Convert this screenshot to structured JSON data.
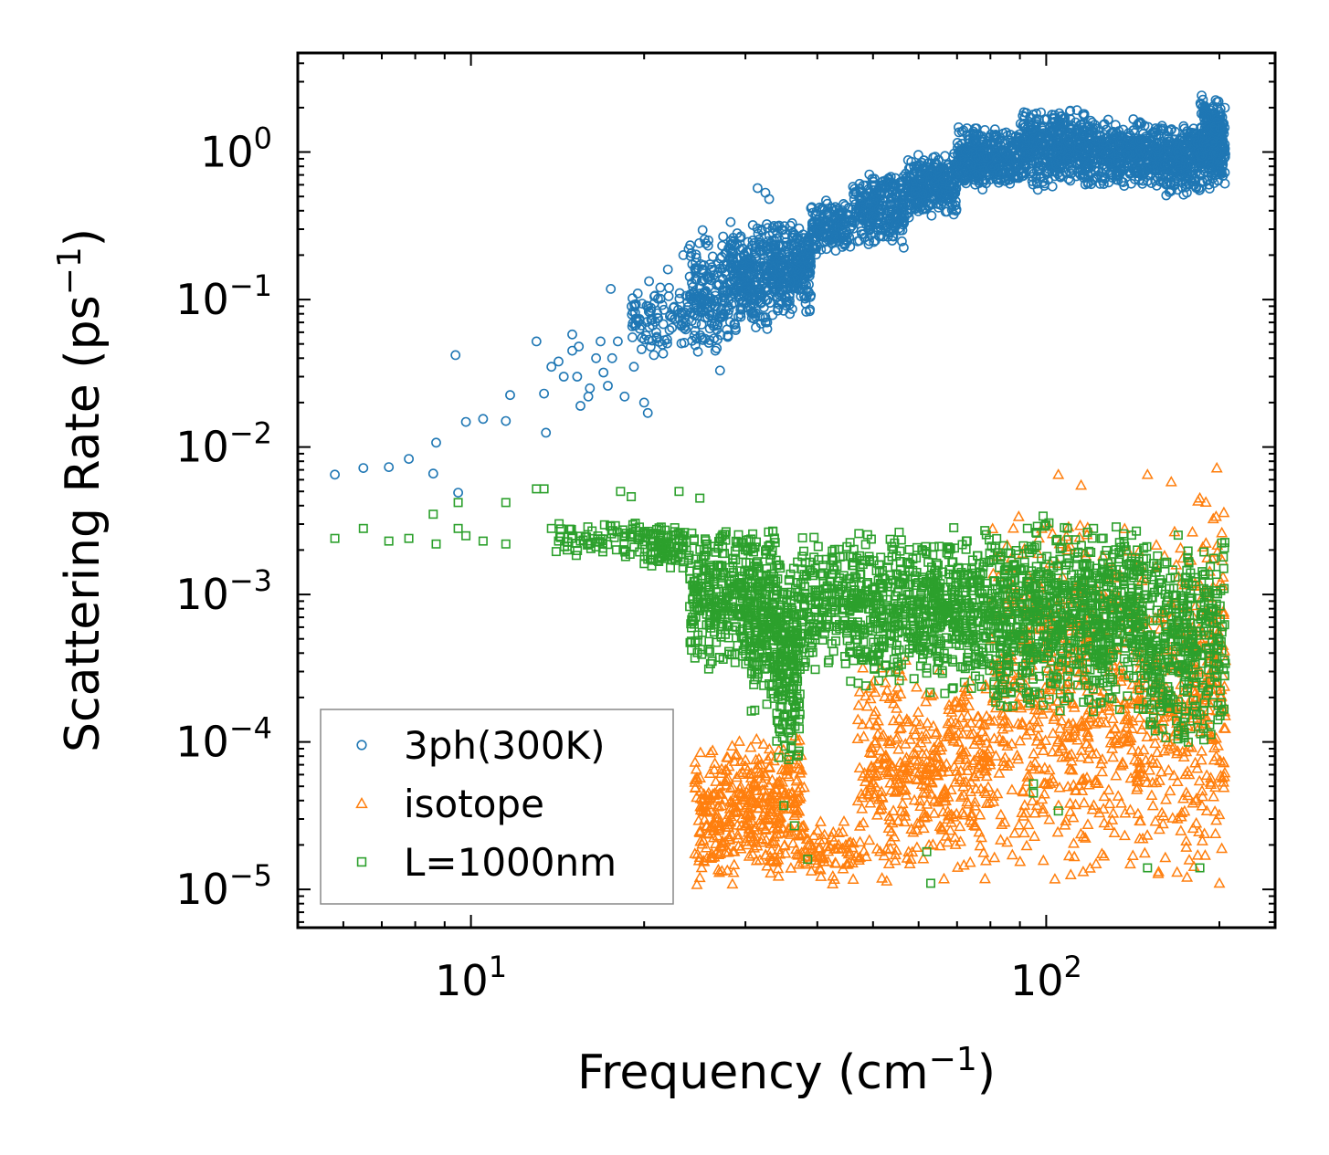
{
  "chart_data": {
    "type": "scatter",
    "title": "",
    "xlabel": "Frequency (cm⁻¹)",
    "ylabel": "Scattering Rate (ps⁻¹)",
    "xlabel_parts": {
      "base": "Frequency (cm",
      "sup": "−1",
      "close": ")"
    },
    "ylabel_parts": {
      "base": "Scattering Rate (ps",
      "sup": "−1",
      "close": ")"
    },
    "xscale": "log",
    "yscale": "log",
    "xlim": [
      5.0,
      250.0
    ],
    "ylim": [
      5.5e-06,
      4.7
    ],
    "xticks": [
      {
        "value": 10,
        "base": "10",
        "exp": "1"
      },
      {
        "value": 100,
        "base": "10",
        "exp": "2"
      }
    ],
    "yticks": [
      {
        "value": 1e-05,
        "base": "10",
        "exp": "−5"
      },
      {
        "value": 0.0001,
        "base": "10",
        "exp": "−4"
      },
      {
        "value": 0.001,
        "base": "10",
        "exp": "−3"
      },
      {
        "value": 0.01,
        "base": "10",
        "exp": "−2"
      },
      {
        "value": 0.1,
        "base": "10",
        "exp": "−1"
      },
      {
        "value": 1,
        "base": "10",
        "exp": "0"
      }
    ],
    "legend_position": "lower-left",
    "series": [
      {
        "name": "3ph(300K)",
        "marker": "circle",
        "color": "#1f77b4",
        "points": [
          [
            5.8,
            0.0065
          ],
          [
            6.5,
            0.0072
          ],
          [
            7.2,
            0.0073
          ],
          [
            7.8,
            0.0083
          ],
          [
            8.7,
            0.0107
          ],
          [
            8.6,
            0.0066
          ],
          [
            9.4,
            0.042
          ],
          [
            9.5,
            0.0049
          ],
          [
            9.8,
            0.0148
          ],
          [
            10.5,
            0.0155
          ],
          [
            11.5,
            0.015
          ],
          [
            11.7,
            0.0225
          ],
          [
            13.0,
            0.052
          ],
          [
            13.4,
            0.023
          ],
          [
            13.5,
            0.0125
          ],
          [
            13.8,
            0.035
          ],
          [
            14.2,
            0.038
          ],
          [
            14.5,
            0.03
          ],
          [
            15.0,
            0.058
          ],
          [
            15.0,
            0.045
          ],
          [
            15.3,
            0.03
          ],
          [
            15.4,
            0.048
          ],
          [
            15.5,
            0.019
          ],
          [
            16.0,
            0.022
          ],
          [
            16.1,
            0.025
          ],
          [
            16.5,
            0.04
          ],
          [
            16.8,
            0.052
          ],
          [
            17.0,
            0.032
          ],
          [
            17.3,
            0.026
          ],
          [
            17.6,
            0.04
          ],
          [
            17.5,
            0.118
          ],
          [
            18.0,
            0.052
          ],
          [
            18.5,
            0.022
          ],
          [
            19.5,
            0.11
          ],
          [
            19.2,
            0.035
          ],
          [
            19.8,
            0.046
          ],
          [
            20.0,
            0.02
          ],
          [
            20.3,
            0.017
          ],
          [
            20.8,
            0.042
          ],
          [
            21.0,
            0.06
          ],
          [
            22.0,
            0.16
          ],
          [
            22.1,
            0.12
          ],
          [
            22.5,
            0.088
          ],
          [
            23.0,
            0.075
          ],
          [
            23.4,
            0.2
          ],
          [
            23.9,
            0.22
          ],
          [
            24.5,
            0.078
          ],
          [
            25.0,
            0.11
          ],
          [
            25.6,
            0.24
          ],
          [
            26.0,
            0.053
          ],
          [
            26.6,
            0.045
          ],
          [
            27.1,
            0.033
          ],
          [
            28.0,
            0.09
          ],
          [
            29.0,
            0.16
          ],
          [
            30.0,
            0.12
          ],
          [
            30.8,
            0.075
          ],
          [
            31.5,
            0.57
          ],
          [
            32.5,
            0.53
          ],
          [
            33.0,
            0.48
          ]
        ],
        "bands": [
          {
            "x0": 19,
            "x1": 24,
            "lo": 0.04,
            "hi": 0.14,
            "n": 90
          },
          {
            "x0": 24,
            "x1": 28,
            "lo": 0.04,
            "hi": 0.3,
            "n": 170
          },
          {
            "x0": 28,
            "x1": 33,
            "lo": 0.06,
            "hi": 0.35,
            "n": 260
          },
          {
            "x0": 33,
            "x1": 39,
            "lo": 0.075,
            "hi": 0.35,
            "n": 300
          },
          {
            "x0": 39,
            "x1": 46,
            "lo": 0.2,
            "hi": 0.48,
            "n": 160
          },
          {
            "x0": 46,
            "x1": 57,
            "lo": 0.22,
            "hi": 0.75,
            "n": 260
          },
          {
            "x0": 57,
            "x1": 70,
            "lo": 0.35,
            "hi": 1.0,
            "n": 300
          },
          {
            "x0": 70,
            "x1": 90,
            "lo": 0.55,
            "hi": 1.5,
            "n": 380
          },
          {
            "x0": 90,
            "x1": 120,
            "lo": 0.55,
            "hi": 2.0,
            "n": 460
          },
          {
            "x0": 120,
            "x1": 160,
            "lo": 0.55,
            "hi": 1.7,
            "n": 440
          },
          {
            "x0": 160,
            "x1": 185,
            "lo": 0.5,
            "hi": 1.6,
            "n": 240
          },
          {
            "x0": 185,
            "x1": 205,
            "lo": 0.55,
            "hi": 2.5,
            "n": 300
          }
        ]
      },
      {
        "name": "isotope",
        "marker": "triangle",
        "color": "#ff7f0e",
        "points": [
          [
            105,
            0.0065
          ],
          [
            150,
            0.0065
          ],
          [
            165,
            0.0058
          ],
          [
            198,
            0.0072
          ],
          [
            115,
            0.0055
          ],
          [
            185,
            0.0045
          ],
          [
            25,
            1.2e-05
          ],
          [
            40,
            1.5e-05
          ],
          [
            200,
            1.1e-05
          ]
        ],
        "bands": [
          {
            "x0": 24.5,
            "x1": 31,
            "lo": 1e-05,
            "hi": 0.00011,
            "n": 220
          },
          {
            "x0": 31,
            "x1": 38,
            "lo": 1e-05,
            "hi": 0.00012,
            "n": 200
          },
          {
            "x0": 38,
            "x1": 41,
            "lo": 1.2e-05,
            "hi": 3e-05,
            "n": 30
          },
          {
            "x0": 41,
            "x1": 47,
            "lo": 1e-05,
            "hi": 3e-05,
            "n": 40
          },
          {
            "x0": 47,
            "x1": 60,
            "lo": 1e-05,
            "hi": 0.0004,
            "n": 200
          },
          {
            "x0": 60,
            "x1": 80,
            "lo": 1e-05,
            "hi": 0.0004,
            "n": 240
          },
          {
            "x0": 80,
            "x1": 130,
            "lo": 1e-05,
            "hi": 0.004,
            "n": 460
          },
          {
            "x0": 130,
            "x1": 175,
            "lo": 1e-05,
            "hi": 0.003,
            "n": 280
          },
          {
            "x0": 175,
            "x1": 205,
            "lo": 1e-05,
            "hi": 0.005,
            "n": 200
          }
        ]
      },
      {
        "name": "L=1000nm",
        "marker": "square",
        "color": "#2ca02c",
        "points": [
          [
            5.8,
            0.0024
          ],
          [
            6.5,
            0.0028
          ],
          [
            7.2,
            0.0023
          ],
          [
            7.8,
            0.0024
          ],
          [
            8.6,
            0.0035
          ],
          [
            8.7,
            0.0022
          ],
          [
            9.5,
            0.0042
          ],
          [
            9.5,
            0.0028
          ],
          [
            9.8,
            0.0025
          ],
          [
            10.5,
            0.0023
          ],
          [
            11.5,
            0.0042
          ],
          [
            11.5,
            0.0022
          ],
          [
            13.0,
            0.0052
          ],
          [
            13.4,
            0.0052
          ],
          [
            13.8,
            0.0028
          ],
          [
            14.2,
            0.0023
          ],
          [
            15.0,
            0.0025
          ],
          [
            15.5,
            0.0023
          ],
          [
            16.0,
            0.0022
          ],
          [
            16.5,
            0.0021
          ],
          [
            17.5,
            0.0029
          ],
          [
            18.2,
            0.005
          ],
          [
            19.0,
            0.0046
          ],
          [
            23.0,
            0.005
          ],
          [
            25.0,
            0.0045
          ],
          [
            35.0,
            3.7e-05
          ],
          [
            36.5,
            2.7e-05
          ],
          [
            38.5,
            1.6e-05
          ],
          [
            63,
            1.1e-05
          ],
          [
            62,
            1.8e-05
          ],
          [
            95,
            5.2e-05
          ],
          [
            95,
            4.5e-05
          ],
          [
            105,
            3.4e-05
          ],
          [
            150,
            1.4e-05
          ],
          [
            185,
            1.4e-05
          ]
        ],
        "bands": [
          {
            "x0": 14,
            "x1": 20,
            "lo": 0.0018,
            "hi": 0.0032,
            "n": 70
          },
          {
            "x0": 20,
            "x1": 24,
            "lo": 0.0015,
            "hi": 0.0032,
            "n": 100
          },
          {
            "x0": 24,
            "x1": 30,
            "lo": 0.0003,
            "hi": 0.003,
            "n": 260
          },
          {
            "x0": 30,
            "x1": 34,
            "lo": 0.00015,
            "hi": 0.0035,
            "n": 240
          },
          {
            "x0": 34,
            "x1": 37.5,
            "lo": 6e-05,
            "hi": 0.002,
            "n": 220
          },
          {
            "x0": 37.5,
            "x1": 45,
            "lo": 0.0003,
            "hi": 0.0025,
            "n": 160
          },
          {
            "x0": 45,
            "x1": 60,
            "lo": 0.0002,
            "hi": 0.003,
            "n": 320
          },
          {
            "x0": 60,
            "x1": 80,
            "lo": 0.0002,
            "hi": 0.003,
            "n": 360
          },
          {
            "x0": 80,
            "x1": 110,
            "lo": 0.00015,
            "hi": 0.0035,
            "n": 420
          },
          {
            "x0": 110,
            "x1": 150,
            "lo": 0.00015,
            "hi": 0.0035,
            "n": 420
          },
          {
            "x0": 150,
            "x1": 205,
            "lo": 8e-05,
            "hi": 0.0028,
            "n": 360
          }
        ]
      }
    ]
  }
}
